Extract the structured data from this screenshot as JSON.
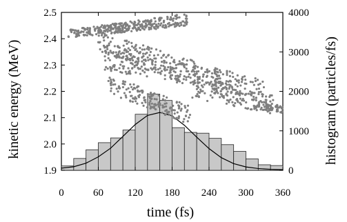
{
  "chart_data": {
    "type": "scatter",
    "title": "",
    "xlabel": "time (fs)",
    "ylabel": "kinetic energy (MeV)",
    "ylabel_right": "histogram (particles/fs)",
    "xlim": [
      0,
      360
    ],
    "ylim": [
      1.9,
      2.5
    ],
    "ylim_right": [
      0,
      4000
    ],
    "x_ticks": [
      0,
      60,
      120,
      180,
      240,
      300,
      360
    ],
    "y_ticks": [
      1.9,
      2.0,
      2.1,
      2.2,
      2.3,
      2.4,
      2.5
    ],
    "y_ticks_right": [
      0,
      1000,
      2000,
      3000,
      4000
    ],
    "colors": {
      "scatter": "#7f7f7f",
      "bar_fill": "#c8c8c8",
      "bar_stroke": "#222222",
      "curve": "#000000",
      "axis": "#000000"
    },
    "series": [
      {
        "name": "",
        "kind": "scatter",
        "description_points": "Dense clusters of particle energies versus time; points form a banded arc from about 2.45 MeV near 10–200 fs, a broad middle band from about 2.15–2.38 MeV between 70 and 330 fs, and lower branches down to about 2.13 MeV near 220–360 fs."
      },
      {
        "name": "",
        "kind": "histogram",
        "bin_width": 20,
        "bins": [
          {
            "x": 10,
            "value": 110
          },
          {
            "x": 30,
            "value": 300
          },
          {
            "x": 50,
            "value": 520
          },
          {
            "x": 70,
            "value": 700
          },
          {
            "x": 90,
            "value": 820
          },
          {
            "x": 110,
            "value": 1020
          },
          {
            "x": 130,
            "value": 1420
          },
          {
            "x": 150,
            "value": 1930
          },
          {
            "x": 170,
            "value": 1770
          },
          {
            "x": 190,
            "value": 1080
          },
          {
            "x": 210,
            "value": 960
          },
          {
            "x": 230,
            "value": 940
          },
          {
            "x": 250,
            "value": 810
          },
          {
            "x": 270,
            "value": 650
          },
          {
            "x": 290,
            "value": 480
          },
          {
            "x": 310,
            "value": 290
          },
          {
            "x": 330,
            "value": 140
          },
          {
            "x": 350,
            "value": 120
          }
        ]
      },
      {
        "name": "",
        "kind": "line",
        "description_points": "Smooth Gaussian fit over the histogram",
        "points": [
          {
            "x": 0,
            "y": 55
          },
          {
            "x": 20,
            "y": 90
          },
          {
            "x": 40,
            "y": 180
          },
          {
            "x": 60,
            "y": 340
          },
          {
            "x": 80,
            "y": 560
          },
          {
            "x": 100,
            "y": 860
          },
          {
            "x": 120,
            "y": 1160
          },
          {
            "x": 140,
            "y": 1390
          },
          {
            "x": 160,
            "y": 1465
          },
          {
            "x": 180,
            "y": 1380
          },
          {
            "x": 200,
            "y": 1140
          },
          {
            "x": 220,
            "y": 840
          },
          {
            "x": 240,
            "y": 550
          },
          {
            "x": 260,
            "y": 320
          },
          {
            "x": 280,
            "y": 170
          },
          {
            "x": 300,
            "y": 85
          },
          {
            "x": 320,
            "y": 45
          },
          {
            "x": 340,
            "y": 25
          },
          {
            "x": 360,
            "y": 15
          }
        ]
      }
    ],
    "grid": false,
    "legend": "none"
  }
}
